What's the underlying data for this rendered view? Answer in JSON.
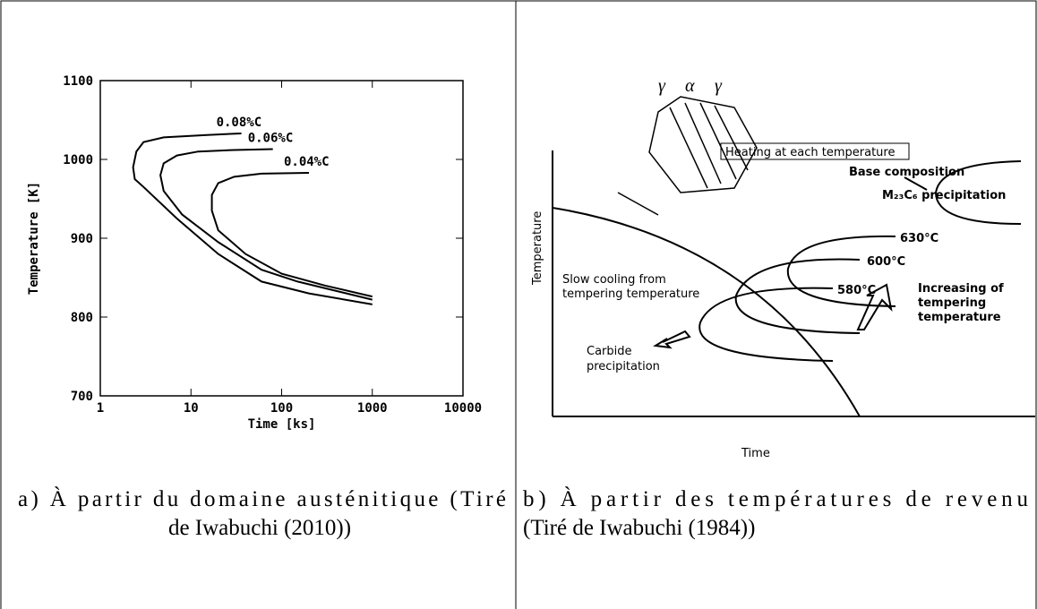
{
  "chart_data": {
    "type": "line",
    "xlabel": "Time [ks]",
    "ylabel": "Temperature [K]",
    "xscale": "log",
    "xlim": [
      1,
      10000
    ],
    "xticks": [
      1,
      10,
      100,
      1000,
      10000
    ],
    "ylim": [
      700,
      1100
    ],
    "yticks": [
      700,
      800,
      900,
      1000,
      1100
    ],
    "series": [
      {
        "name": "0.08%C",
        "color": "#000000",
        "x": [
          36,
          15,
          5,
          3,
          2.5,
          2.3,
          2.4,
          3,
          7,
          20,
          60,
          200,
          1000
        ],
        "values": [
          1033,
          1031,
          1028,
          1022,
          1010,
          990,
          975,
          965,
          925,
          880,
          845,
          830,
          816
        ]
      },
      {
        "name": "0.06%C",
        "color": "#000000",
        "x": [
          80,
          30,
          12,
          7,
          5,
          4.6,
          5,
          8,
          20,
          60,
          150,
          1000
        ],
        "values": [
          1013,
          1012,
          1010,
          1005,
          995,
          980,
          960,
          930,
          895,
          860,
          845,
          822
        ]
      },
      {
        "name": "0.04%C",
        "color": "#000000",
        "x": [
          200,
          60,
          30,
          20,
          17,
          17,
          20,
          40,
          100,
          300,
          1000
        ],
        "values": [
          983,
          982,
          978,
          970,
          955,
          935,
          910,
          880,
          855,
          840,
          826
        ]
      }
    ]
  },
  "diagram": {
    "phases": [
      "γ",
      "α",
      "γ"
    ],
    "heating": "Heating at each temperature",
    "base": "Base composition",
    "m23c6": "M₂₃C₆ precipitation",
    "t630": "630°C",
    "t600": "600°C",
    "t580": "580°C",
    "increasing": [
      "Increasing of",
      "tempering",
      "temperature"
    ],
    "slow": [
      "Slow cooling from",
      "tempering temperature"
    ],
    "carbide": [
      "Carbide",
      "precipitation"
    ],
    "ylabel": "Temperature",
    "xlabel": "Time"
  },
  "captions": {
    "a": [
      "a) À partir du domaine austénitique (Tiré",
      "de Iwabuchi (2010))"
    ],
    "b": [
      "b) À partir des températures de revenu",
      "(Tiré de Iwabuchi (1984))"
    ]
  }
}
